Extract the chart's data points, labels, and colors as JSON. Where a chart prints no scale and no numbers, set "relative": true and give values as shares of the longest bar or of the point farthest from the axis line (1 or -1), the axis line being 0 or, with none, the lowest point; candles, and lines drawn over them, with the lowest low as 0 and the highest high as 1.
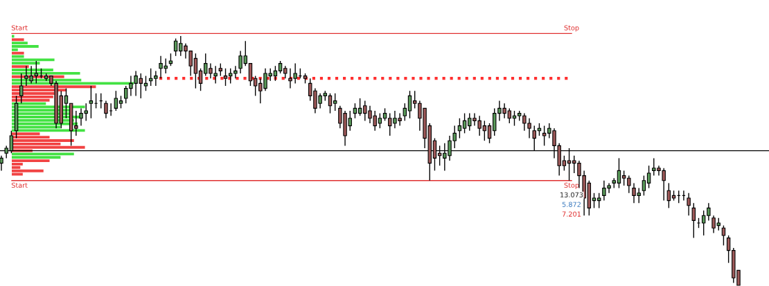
{
  "chart_data": [
    {
      "type": "candlestick",
      "relative": true,
      "legend": false,
      "categories": [
        null,
        null,
        null,
        null,
        null,
        null,
        null,
        null,
        null,
        null,
        null,
        null,
        null,
        null,
        null,
        null,
        null,
        null,
        null,
        null,
        null,
        null,
        null,
        null,
        null,
        null,
        null,
        null,
        null,
        null,
        null,
        null,
        null,
        null,
        null,
        null,
        null,
        null,
        null,
        null,
        null,
        null,
        null,
        null,
        null,
        null,
        null,
        null,
        null,
        null,
        null,
        null,
        null,
        null,
        null,
        null,
        null,
        null,
        null,
        null,
        null,
        null,
        null,
        null,
        null,
        null,
        null,
        null,
        null,
        null,
        null,
        null,
        null,
        null,
        null,
        null,
        null,
        null,
        null,
        null,
        null,
        null,
        null,
        null,
        null,
        null,
        null,
        null,
        null,
        null,
        null,
        null,
        null,
        null,
        null,
        null,
        null,
        null,
        null,
        null,
        null,
        null,
        null,
        null,
        null,
        null,
        null,
        null,
        null,
        null,
        null,
        null,
        null,
        null,
        null,
        null,
        null,
        null,
        null,
        null,
        null,
        null,
        null,
        null,
        null,
        null,
        null,
        null,
        null,
        null,
        null,
        null,
        null,
        null,
        null,
        null,
        null,
        null,
        null,
        null,
        null,
        null,
        null,
        null,
        null,
        null,
        null,
        null,
        null
      ],
      "ohlc": [
        [
          0.49,
          0.52,
          0.46,
          0.51
        ],
        [
          0.53,
          0.56,
          0.51,
          0.55
        ],
        [
          0.54,
          0.62,
          0.53,
          0.6
        ],
        [
          0.62,
          0.76,
          0.59,
          0.73
        ],
        [
          0.76,
          0.85,
          0.73,
          0.8
        ],
        [
          0.83,
          0.88,
          0.8,
          0.84
        ],
        [
          0.82,
          0.88,
          0.81,
          0.84
        ],
        [
          0.84,
          0.9,
          0.81,
          0.85
        ],
        [
          0.84,
          0.87,
          0.83,
          0.84
        ],
        [
          0.83,
          0.85,
          0.82,
          0.84
        ],
        [
          0.84,
          0.84,
          0.8,
          0.81
        ],
        [
          0.81,
          0.82,
          0.63,
          0.65
        ],
        [
          0.76,
          0.78,
          0.63,
          0.65
        ],
        [
          0.73,
          0.79,
          0.67,
          0.76
        ],
        [
          0.73,
          0.73,
          0.56,
          0.62
        ],
        [
          0.64,
          0.7,
          0.6,
          0.63
        ],
        [
          0.67,
          0.71,
          0.64,
          0.69
        ],
        [
          0.69,
          0.73,
          0.66,
          0.7
        ],
        [
          0.73,
          0.8,
          0.67,
          0.74
        ],
        [
          0.73,
          0.77,
          0.71,
          0.73
        ],
        [
          0.74,
          0.77,
          0.71,
          0.74
        ],
        [
          0.73,
          0.74,
          0.67,
          0.69
        ],
        [
          0.7,
          0.73,
          0.68,
          0.7
        ],
        [
          0.71,
          0.78,
          0.7,
          0.75
        ],
        [
          0.73,
          0.76,
          0.71,
          0.74
        ],
        [
          0.75,
          0.8,
          0.73,
          0.79
        ],
        [
          0.79,
          0.84,
          0.76,
          0.81
        ],
        [
          0.81,
          0.86,
          0.76,
          0.84
        ],
        [
          0.83,
          0.85,
          0.75,
          0.81
        ],
        [
          0.8,
          0.84,
          0.78,
          0.81
        ],
        [
          0.82,
          0.87,
          0.8,
          0.83
        ],
        [
          0.83,
          0.86,
          0.8,
          0.84
        ],
        [
          0.87,
          0.92,
          0.83,
          0.89
        ],
        [
          0.87,
          0.91,
          0.85,
          0.88
        ],
        [
          0.89,
          0.93,
          0.88,
          0.9
        ],
        [
          0.94,
          0.99,
          0.92,
          0.98
        ],
        [
          0.94,
          1.0,
          0.92,
          0.97
        ],
        [
          0.96,
          0.97,
          0.91,
          0.94
        ],
        [
          0.94,
          0.94,
          0.84,
          0.88
        ],
        [
          0.91,
          0.93,
          0.79,
          0.85
        ],
        [
          0.86,
          0.87,
          0.78,
          0.81
        ],
        [
          0.85,
          0.93,
          0.84,
          0.89
        ],
        [
          0.87,
          0.89,
          0.83,
          0.85
        ],
        [
          0.84,
          0.88,
          0.81,
          0.85
        ],
        [
          0.87,
          0.89,
          0.84,
          0.86
        ],
        [
          0.84,
          0.87,
          0.8,
          0.83
        ],
        [
          0.84,
          0.87,
          0.81,
          0.85
        ],
        [
          0.85,
          0.88,
          0.83,
          0.86
        ],
        [
          0.87,
          0.94,
          0.85,
          0.92
        ],
        [
          0.89,
          0.98,
          0.88,
          0.92
        ],
        [
          0.89,
          0.89,
          0.8,
          0.82
        ],
        [
          0.83,
          0.84,
          0.76,
          0.8
        ],
        [
          0.81,
          0.83,
          0.73,
          0.78
        ],
        [
          0.79,
          0.87,
          0.78,
          0.85
        ],
        [
          0.84,
          0.87,
          0.82,
          0.85
        ],
        [
          0.84,
          0.88,
          0.82,
          0.86
        ],
        [
          0.86,
          0.9,
          0.85,
          0.89
        ],
        [
          0.87,
          0.88,
          0.83,
          0.85
        ],
        [
          0.83,
          0.87,
          0.79,
          0.82
        ],
        [
          0.83,
          0.89,
          0.81,
          0.85
        ],
        [
          0.84,
          0.87,
          0.83,
          0.84
        ],
        [
          0.84,
          0.85,
          0.81,
          0.83
        ],
        [
          0.81,
          0.83,
          0.74,
          0.76
        ],
        [
          0.78,
          0.79,
          0.69,
          0.71
        ],
        [
          0.73,
          0.77,
          0.71,
          0.76
        ],
        [
          0.76,
          0.78,
          0.74,
          0.77
        ],
        [
          0.76,
          0.77,
          0.69,
          0.72
        ],
        [
          0.73,
          0.77,
          0.7,
          0.74
        ],
        [
          0.71,
          0.72,
          0.63,
          0.65
        ],
        [
          0.69,
          0.7,
          0.56,
          0.6
        ],
        [
          0.64,
          0.7,
          0.62,
          0.67
        ],
        [
          0.69,
          0.73,
          0.67,
          0.71
        ],
        [
          0.69,
          0.75,
          0.68,
          0.71
        ],
        [
          0.72,
          0.74,
          0.66,
          0.69
        ],
        [
          0.7,
          0.72,
          0.65,
          0.67
        ],
        [
          0.68,
          0.7,
          0.62,
          0.64
        ],
        [
          0.65,
          0.69,
          0.63,
          0.67
        ],
        [
          0.67,
          0.71,
          0.66,
          0.69
        ],
        [
          0.67,
          0.69,
          0.6,
          0.64
        ],
        [
          0.65,
          0.7,
          0.63,
          0.67
        ],
        [
          0.67,
          0.69,
          0.64,
          0.66
        ],
        [
          0.68,
          0.73,
          0.66,
          0.71
        ],
        [
          0.7,
          0.78,
          0.67,
          0.76
        ],
        [
          0.74,
          0.78,
          0.71,
          0.73
        ],
        [
          0.73,
          0.74,
          0.62,
          0.67
        ],
        [
          0.71,
          0.71,
          0.55,
          0.59
        ],
        [
          0.64,
          0.65,
          0.42,
          0.49
        ],
        [
          0.58,
          0.59,
          0.46,
          0.51
        ],
        [
          0.53,
          0.56,
          0.48,
          0.52
        ],
        [
          0.51,
          0.57,
          0.46,
          0.53
        ],
        [
          0.52,
          0.6,
          0.5,
          0.58
        ],
        [
          0.58,
          0.64,
          0.55,
          0.61
        ],
        [
          0.62,
          0.67,
          0.59,
          0.64
        ],
        [
          0.63,
          0.69,
          0.61,
          0.66
        ],
        [
          0.64,
          0.69,
          0.62,
          0.67
        ],
        [
          0.67,
          0.69,
          0.64,
          0.66
        ],
        [
          0.66,
          0.68,
          0.6,
          0.63
        ],
        [
          0.64,
          0.66,
          0.58,
          0.62
        ],
        [
          0.64,
          0.65,
          0.57,
          0.59
        ],
        [
          0.62,
          0.71,
          0.6,
          0.69
        ],
        [
          0.69,
          0.74,
          0.66,
          0.71
        ],
        [
          0.71,
          0.73,
          0.67,
          0.69
        ],
        [
          0.7,
          0.71,
          0.65,
          0.67
        ],
        [
          0.67,
          0.7,
          0.64,
          0.68
        ],
        [
          0.68,
          0.7,
          0.66,
          0.69
        ],
        [
          0.68,
          0.69,
          0.62,
          0.65
        ],
        [
          0.65,
          0.67,
          0.59,
          0.63
        ],
        [
          0.62,
          0.64,
          0.54,
          0.59
        ],
        [
          0.62,
          0.65,
          0.6,
          0.63
        ],
        [
          0.61,
          0.64,
          0.56,
          0.6
        ],
        [
          0.61,
          0.65,
          0.59,
          0.63
        ],
        [
          0.62,
          0.63,
          0.51,
          0.56
        ],
        [
          0.56,
          0.57,
          0.44,
          0.48
        ],
        [
          0.5,
          0.52,
          0.46,
          0.48
        ],
        [
          0.5,
          0.55,
          0.42,
          0.49
        ],
        [
          0.5,
          0.52,
          0.45,
          0.49
        ],
        [
          0.49,
          0.5,
          0.39,
          0.44
        ],
        [
          0.44,
          0.46,
          0.28,
          0.35
        ],
        [
          0.41,
          0.42,
          0.28,
          0.31
        ],
        [
          0.34,
          0.37,
          0.31,
          0.35
        ],
        [
          0.34,
          0.37,
          0.31,
          0.35
        ],
        [
          0.36,
          0.42,
          0.34,
          0.39
        ],
        [
          0.39,
          0.41,
          0.37,
          0.4
        ],
        [
          0.41,
          0.43,
          0.39,
          0.42
        ],
        [
          0.41,
          0.51,
          0.39,
          0.46
        ],
        [
          0.44,
          0.46,
          0.4,
          0.43
        ],
        [
          0.43,
          0.44,
          0.37,
          0.4
        ],
        [
          0.39,
          0.41,
          0.33,
          0.36
        ],
        [
          0.36,
          0.39,
          0.33,
          0.37
        ],
        [
          0.38,
          0.44,
          0.36,
          0.42
        ],
        [
          0.41,
          0.48,
          0.39,
          0.45
        ],
        [
          0.46,
          0.51,
          0.44,
          0.47
        ],
        [
          0.47,
          0.48,
          0.44,
          0.46
        ],
        [
          0.46,
          0.47,
          0.34,
          0.42
        ],
        [
          0.38,
          0.41,
          0.31,
          0.34
        ],
        [
          0.36,
          0.38,
          0.34,
          0.35
        ],
        [
          0.36,
          0.38,
          0.33,
          0.36
        ],
        [
          0.36,
          0.38,
          0.34,
          0.36
        ],
        [
          0.35,
          0.37,
          0.28,
          0.32
        ],
        [
          0.31,
          0.33,
          0.19,
          0.26
        ],
        [
          0.25,
          0.27,
          0.23,
          0.25
        ],
        [
          0.25,
          0.3,
          0.2,
          0.28
        ],
        [
          0.28,
          0.33,
          0.26,
          0.31
        ],
        [
          0.27,
          0.28,
          0.21,
          0.23
        ],
        [
          0.24,
          0.27,
          0.22,
          0.25
        ],
        [
          0.23,
          0.24,
          0.16,
          0.2
        ],
        [
          0.19,
          0.2,
          0.09,
          0.14
        ],
        [
          0.14,
          0.15,
          0.01,
          0.03
        ],
        [
          0.06,
          0.06,
          0.0,
          0.0
        ]
      ],
      "ref_lines": [
        {
          "axis": "y",
          "value": 1.01,
          "color": "#e03030",
          "line_style": "solid"
        },
        {
          "axis": "y",
          "value": 0.42,
          "color": "#e03030",
          "line_style": "solid"
        },
        {
          "axis": "y",
          "value": 0.83,
          "color": "#ff3030",
          "line_style": "dotted"
        },
        {
          "axis": "y",
          "value": 0.54,
          "color": "#000000",
          "line_style": "solid"
        }
      ],
      "annotations": [
        "Start",
        "Stop",
        "Start",
        "Stop",
        "13.073",
        "5.872",
        "7.201"
      ]
    },
    {
      "type": "bar",
      "orientation": "horizontal",
      "relative": true,
      "legend": false,
      "categories": [
        null,
        null,
        null,
        null,
        null,
        null,
        null,
        null,
        null,
        null,
        null,
        null,
        null,
        null,
        null,
        null,
        null,
        null,
        null,
        null,
        null,
        null,
        null,
        null,
        null,
        null,
        null,
        null,
        null,
        null,
        null,
        null,
        null,
        null,
        null,
        null,
        null,
        null,
        null,
        null,
        null,
        null
      ],
      "values": [
        0.02,
        0.1,
        0.13,
        0.22,
        0.05,
        0.1,
        0.1,
        0.35,
        0.23,
        0.14,
        0.34,
        0.56,
        0.43,
        0.57,
        1,
        0.69,
        0.45,
        0.35,
        0.34,
        0.31,
        0.28,
        0.6,
        0.48,
        0.48,
        0.57,
        0.51,
        0.54,
        0.4,
        0.6,
        0.23,
        0.31,
        0.51,
        0.4,
        0.6,
        0.17,
        0.51,
        0.4,
        0.31,
        0.09,
        0.07,
        0.26,
        0.09
      ],
      "colors": [
        "#22dd22",
        "#ee2222",
        "#22dd22",
        "#22dd22",
        "#22dd22",
        "#ee2222",
        "#22dd22",
        "#22dd22",
        "#22dd22",
        "#ee2222",
        "#22dd22",
        "#22dd22",
        "#ee2222",
        "#22dd22",
        "#22dd22",
        "#ee2222",
        "#ee2222",
        "#ee2222",
        "#ee2222",
        "#ee2222",
        "#22dd22",
        "#22dd22",
        "#22dd22",
        "#22dd22",
        "#22dd22",
        "#22dd22",
        "#22dd22",
        "#22dd22",
        "#22dd22",
        "#ee2222",
        "#ee2222",
        "#ee2222",
        "#ee2222",
        "#ee2222",
        "#ee2222",
        "#22dd22",
        "#22dd22",
        "#ee2222",
        "#ee2222",
        "#ee2222",
        "#ee2222",
        "#ee2222"
      ]
    }
  ]
}
